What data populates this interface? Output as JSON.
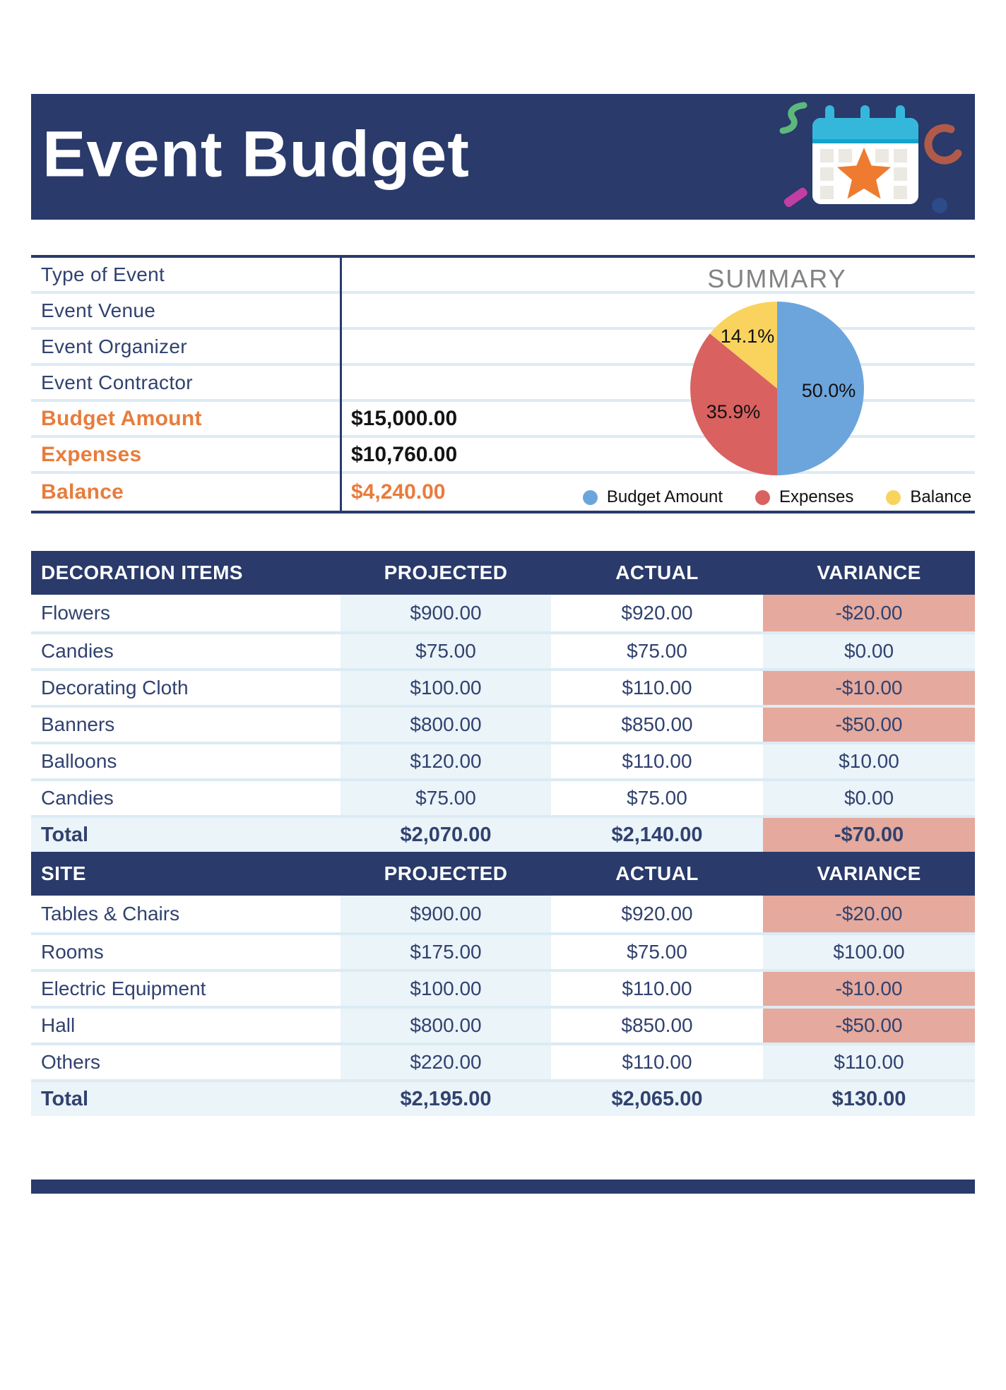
{
  "header": {
    "title": "Event Budget"
  },
  "info": {
    "rows": [
      {
        "label": "Type of Event",
        "value": "",
        "accent": false,
        "balance": false
      },
      {
        "label": "Event Venue",
        "value": "",
        "accent": false,
        "balance": false
      },
      {
        "label": "Event Organizer",
        "value": "",
        "accent": false,
        "balance": false
      },
      {
        "label": "Event Contractor",
        "value": "",
        "accent": false,
        "balance": false
      },
      {
        "label": "Budget Amount",
        "value": "$15,000.00",
        "accent": true,
        "balance": false
      },
      {
        "label": "Expenses",
        "value": "$10,760.00",
        "accent": true,
        "balance": false
      },
      {
        "label": "Balance",
        "value": "$4,240.00",
        "accent": true,
        "balance": true
      }
    ]
  },
  "chart_data": {
    "type": "pie",
    "title": "SUMMARY",
    "categories": [
      "Budget Amount",
      "Expenses",
      "Balance"
    ],
    "values": [
      50.0,
      35.9,
      14.1
    ],
    "value_labels": [
      "50.0%",
      "35.9%",
      "14.1%"
    ],
    "colors": [
      "#6ca5dc",
      "#d96160",
      "#f9d35e"
    ],
    "legend_position": "bottom"
  },
  "tables": [
    {
      "columns": [
        "DECORATION ITEMS",
        "PROJECTED",
        "ACTUAL",
        "VARIANCE"
      ],
      "rows": [
        {
          "item": "Flowers",
          "projected": "$900.00",
          "actual": "$920.00",
          "variance": "-$20.00",
          "negative": true,
          "total": false
        },
        {
          "item": "Candies",
          "projected": "$75.00",
          "actual": "$75.00",
          "variance": "$0.00",
          "negative": false,
          "total": false
        },
        {
          "item": "Decorating Cloth",
          "projected": "$100.00",
          "actual": "$110.00",
          "variance": "-$10.00",
          "negative": true,
          "total": false
        },
        {
          "item": "Banners",
          "projected": "$800.00",
          "actual": "$850.00",
          "variance": "-$50.00",
          "negative": true,
          "total": false
        },
        {
          "item": "Balloons",
          "projected": "$120.00",
          "actual": "$110.00",
          "variance": "$10.00",
          "negative": false,
          "total": false
        },
        {
          "item": "Candies",
          "projected": "$75.00",
          "actual": "$75.00",
          "variance": "$0.00",
          "negative": false,
          "total": false
        },
        {
          "item": "Total",
          "projected": "$2,070.00",
          "actual": "$2,140.00",
          "variance": "-$70.00",
          "negative": true,
          "total": true
        }
      ]
    },
    {
      "columns": [
        "SITE",
        "PROJECTED",
        "ACTUAL",
        "VARIANCE"
      ],
      "rows": [
        {
          "item": "Tables & Chairs",
          "projected": "$900.00",
          "actual": "$920.00",
          "variance": "-$20.00",
          "negative": true,
          "total": false
        },
        {
          "item": "Rooms",
          "projected": "$175.00",
          "actual": "$75.00",
          "variance": "$100.00",
          "negative": false,
          "total": false
        },
        {
          "item": "Electric Equipment",
          "projected": "$100.00",
          "actual": "$110.00",
          "variance": "-$10.00",
          "negative": true,
          "total": false
        },
        {
          "item": "Hall",
          "projected": "$800.00",
          "actual": "$850.00",
          "variance": "-$50.00",
          "negative": true,
          "total": false
        },
        {
          "item": "Others",
          "projected": "$220.00",
          "actual": "$110.00",
          "variance": "$110.00",
          "negative": false,
          "total": false
        },
        {
          "item": "Total",
          "projected": "$2,195.00",
          "actual": "$2,065.00",
          "variance": "$130.00",
          "negative": false,
          "total": true
        }
      ]
    }
  ],
  "colors": {
    "navy": "#293a6b",
    "text_navy": "#31426f",
    "accent_orange": "#e87c3c",
    "cell_blue": "#eaf4f9",
    "row_line": "#dcebf3",
    "negative_salmon": "#e5a99d",
    "summary_gray": "#828282"
  }
}
